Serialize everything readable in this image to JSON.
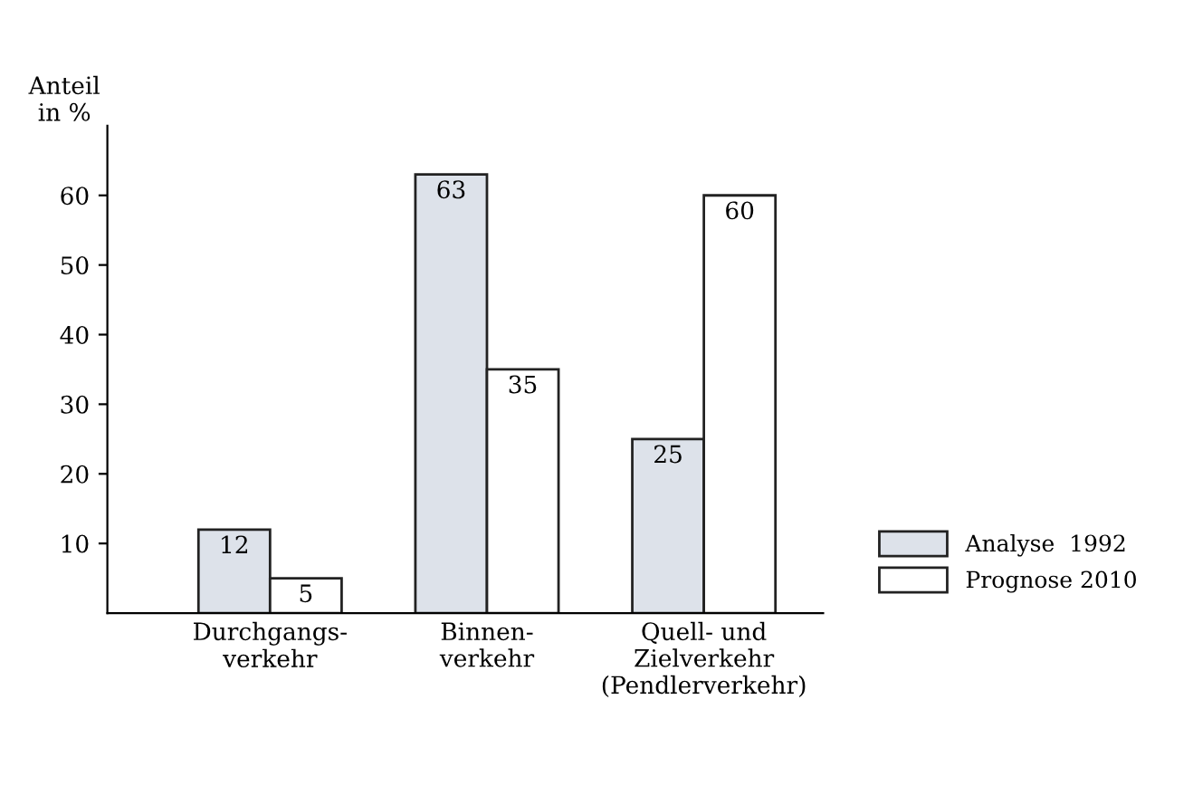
{
  "chart_data": {
    "type": "bar",
    "ylabel": "Anteil\nin %",
    "categories": [
      "Durchgangs-\nverkehr",
      "Binnen-\nverkehr",
      "Quell- und\nZielverkehr\n(Pendlerverkehr)"
    ],
    "series": [
      {
        "name": "Analyse  1992",
        "color": "#dde2ea",
        "values": [
          12,
          63,
          25
        ]
      },
      {
        "name": "Prognose 2010",
        "color": "#ffffff",
        "values": [
          5,
          35,
          60
        ]
      }
    ],
    "ylim": [
      0,
      70
    ],
    "yticks": [
      10,
      20,
      30,
      40,
      50,
      60
    ],
    "data_labels": true,
    "legend": "right",
    "grid": false
  }
}
